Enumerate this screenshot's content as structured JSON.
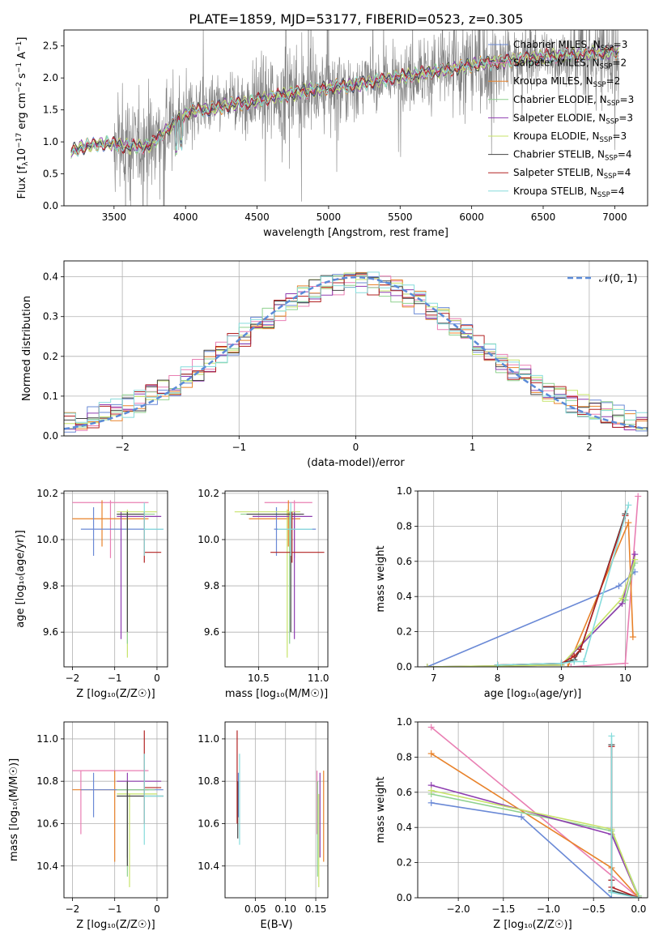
{
  "figure": {
    "title": "PLATE=1859, MJD=53177, FIBERID=0523, z=0.305",
    "colors": {
      "c_miles": "#6a89d6",
      "s_miles": "#e97fb3",
      "k_miles": "#e8822a",
      "c_elodie": "#8fd18f",
      "s_elodie": "#8e3db0",
      "k_elodie": "#c7e36a",
      "c_stelib": "#444444",
      "s_stelib": "#b22222",
      "k_stelib": "#86dcdc",
      "obs": "#808080",
      "normal": "#5b8bd8"
    }
  },
  "chart_data": [
    {
      "id": "spectrum",
      "type": "line",
      "title": "PLATE=1859, MJD=53177, FIBERID=0523, z=0.305",
      "xlabel": "wavelength [Angstrom, rest frame]",
      "ylabel_parts": [
        "Flux [f",
        "λ",
        "10",
        "−17",
        " erg cm",
        "−2",
        " s",
        "−1",
        " A",
        "−1",
        "]"
      ],
      "xlim": [
        3150,
        7230
      ],
      "ylim": [
        0,
        2.75
      ],
      "xticks": [
        3500,
        4000,
        4500,
        5000,
        5500,
        6000,
        6500,
        7000
      ],
      "yticks": [
        0.0,
        0.5,
        1.0,
        1.5,
        2.0,
        2.5
      ],
      "legend_position": "top-right",
      "legend": [
        {
          "label": "Chabrier MILES, N",
          "sub": "SSP",
          "suffix": "=3",
          "color_key": "c_miles"
        },
        {
          "label": "Salpeter MILES, N",
          "sub": "SSP",
          "suffix": "=2",
          "color_key": "s_miles"
        },
        {
          "label": "Kroupa MILES, N",
          "sub": "SSP",
          "suffix": "=2",
          "color_key": "k_miles"
        },
        {
          "label": "Chabrier ELODIE, N",
          "sub": "SSP",
          "suffix": "=3",
          "color_key": "c_elodie"
        },
        {
          "label": "Salpeter ELODIE, N",
          "sub": "SSP",
          "suffix": "=3",
          "color_key": "s_elodie"
        },
        {
          "label": "Kroupa ELODIE, N",
          "sub": "SSP",
          "suffix": "=3",
          "color_key": "k_elodie"
        },
        {
          "label": "Chabrier STELIB, N",
          "sub": "SSP",
          "suffix": "=4",
          "color_key": "c_stelib"
        },
        {
          "label": "Salpeter STELIB, N",
          "sub": "SSP",
          "suffix": "=4",
          "color_key": "s_stelib"
        },
        {
          "label": "Kroupa STELIB, N",
          "sub": "SSP",
          "suffix": "=4",
          "color_key": "k_stelib"
        }
      ],
      "continuum_model": {
        "x": [
          3200,
          3280,
          3350,
          3450,
          3550,
          3650,
          3750,
          3850,
          3950,
          4050,
          4150,
          4300,
          4450,
          4600,
          4800,
          5000,
          5200,
          5400,
          5600,
          5800,
          6000,
          6200,
          6400,
          6600,
          6800,
          7000
        ],
        "y": [
          0.85,
          0.92,
          0.95,
          0.98,
          0.95,
          0.92,
          0.95,
          1.15,
          1.35,
          1.5,
          1.5,
          1.58,
          1.62,
          1.7,
          1.78,
          1.85,
          1.9,
          1.98,
          2.05,
          2.12,
          2.2,
          2.26,
          2.31,
          2.35,
          2.38,
          2.4
        ]
      },
      "noise_start_x": 3500
    },
    {
      "id": "residuals",
      "type": "step",
      "xlabel": "(data-model)/error",
      "ylabel": "Normed distribution",
      "xlim": [
        -2.5,
        2.5
      ],
      "ylim": [
        0,
        0.44
      ],
      "xticks": [
        -2,
        -1,
        0,
        1,
        2
      ],
      "xtick_labels": [
        "−2",
        "−1",
        "0",
        "1",
        "2"
      ],
      "yticks": [
        0.0,
        0.1,
        0.2,
        0.3,
        0.4
      ],
      "legend_label": "𝒩(0, 1)",
      "legend_position": "top-right",
      "bin_width": 0.1
    },
    {
      "id": "age_vs_Z",
      "type": "errorbar",
      "xlabel": "Z [log₁₀(Z/Z☉)]",
      "ylabel": "age  [log₁₀(age/yr)]",
      "xlim": [
        -2.2,
        0.25
      ],
      "ylim": [
        9.45,
        10.21
      ],
      "xticks": [
        -2,
        -1,
        0
      ],
      "xtick_labels": [
        "−2",
        "−1",
        "0"
      ],
      "yticks": [
        9.6,
        9.8,
        10.0,
        10.2
      ],
      "points": [
        {
          "color_key": "s_miles",
          "x": -1.1,
          "xlo": -2.0,
          "xhi": -0.2,
          "y": 10.16,
          "ylo": 9.92,
          "yhi": 10.17
        },
        {
          "color_key": "k_miles",
          "x": -1.3,
          "xlo": -2.0,
          "xhi": -0.2,
          "y": 10.09,
          "ylo": 9.97,
          "yhi": 10.17
        },
        {
          "color_key": "c_miles",
          "x": -1.5,
          "xlo": -1.8,
          "xhi": 0.15,
          "y": 10.045,
          "ylo": 9.93,
          "yhi": 10.14
        },
        {
          "color_key": "k_elodie",
          "x": -0.7,
          "xlo": -0.95,
          "xhi": 0.0,
          "y": 10.12,
          "ylo": 9.49,
          "yhi": 10.13
        },
        {
          "color_key": "s_elodie",
          "x": -0.85,
          "xlo": -0.95,
          "xhi": 0.1,
          "y": 10.1,
          "ylo": 9.57,
          "yhi": 10.12
        },
        {
          "color_key": "c_elodie",
          "x": -0.7,
          "xlo": -0.95,
          "xhi": -0.05,
          "y": 10.11,
          "ylo": 9.55,
          "yhi": 10.12
        },
        {
          "color_key": "c_stelib",
          "x": -0.7,
          "xlo": -0.95,
          "xhi": -0.3,
          "y": 10.11,
          "ylo": 9.6,
          "yhi": 10.12
        },
        {
          "color_key": "s_stelib",
          "x": -0.3,
          "xlo": -0.3,
          "xhi": 0.1,
          "y": 9.945,
          "ylo": 9.9,
          "yhi": 10.12
        },
        {
          "color_key": "k_stelib",
          "x": -0.3,
          "xlo": -0.3,
          "xhi": 0.15,
          "y": 10.045,
          "ylo": 9.93,
          "yhi": 10.16
        }
      ]
    },
    {
      "id": "age_vs_mass",
      "type": "errorbar",
      "xlabel": "mass [log₁₀(M/M☉)]",
      "ylabel": "",
      "xlim": [
        10.22,
        11.08
      ],
      "ylim": [
        9.45,
        10.21
      ],
      "xticks": [
        10.5,
        11.0
      ],
      "xtick_labels": [
        "10.5",
        "11.0"
      ],
      "yticks": [
        9.6,
        9.8,
        10.0,
        10.2
      ],
      "points": [
        {
          "color_key": "s_miles",
          "x": 10.8,
          "xlo": 10.55,
          "xhi": 10.95,
          "y": 10.16,
          "ylo": 9.92,
          "yhi": 10.17
        },
        {
          "color_key": "k_miles",
          "x": 10.75,
          "xlo": 10.42,
          "xhi": 10.85,
          "y": 10.09,
          "ylo": 9.97,
          "yhi": 10.17
        },
        {
          "color_key": "c_miles",
          "x": 10.65,
          "xlo": 10.63,
          "xhi": 10.98,
          "y": 10.045,
          "ylo": 9.93,
          "yhi": 10.14
        },
        {
          "color_key": "k_elodie",
          "x": 10.74,
          "xlo": 10.3,
          "xhi": 10.85,
          "y": 10.12,
          "ylo": 9.49,
          "yhi": 10.13
        },
        {
          "color_key": "s_elodie",
          "x": 10.8,
          "xlo": 10.45,
          "xhi": 10.95,
          "y": 10.1,
          "ylo": 9.57,
          "yhi": 10.12
        },
        {
          "color_key": "c_elodie",
          "x": 10.76,
          "xlo": 10.35,
          "xhi": 10.85,
          "y": 10.11,
          "ylo": 9.55,
          "yhi": 10.12
        },
        {
          "color_key": "c_stelib",
          "x": 10.77,
          "xlo": 10.4,
          "xhi": 10.88,
          "y": 10.11,
          "ylo": 9.6,
          "yhi": 10.12
        },
        {
          "color_key": "s_stelib",
          "x": 10.78,
          "xlo": 10.6,
          "xhi": 11.05,
          "y": 9.945,
          "ylo": 9.9,
          "yhi": 10.12
        },
        {
          "color_key": "k_stelib",
          "x": 10.77,
          "xlo": 10.66,
          "xhi": 10.95,
          "y": 10.045,
          "ylo": 9.93,
          "yhi": 10.16
        }
      ]
    },
    {
      "id": "weight_vs_age",
      "type": "line",
      "xlabel": "age  [log₁₀(age/yr)]",
      "ylabel": "mass weight",
      "xlim": [
        6.75,
        10.35
      ],
      "ylim": [
        0,
        1.0
      ],
      "xticks": [
        7,
        8,
        9,
        10
      ],
      "xtick_labels": [
        "7",
        "8",
        "9",
        "10"
      ],
      "yticks": [
        0.0,
        0.2,
        0.4,
        0.6,
        0.8,
        1.0
      ],
      "series": [
        {
          "color_key": "c_miles",
          "x": [
            6.9,
            9.9,
            10.15
          ],
          "y": [
            0.0,
            0.46,
            0.54
          ]
        },
        {
          "color_key": "s_miles",
          "x": [
            9.15,
            10.0,
            10.2
          ],
          "y": [
            0.0,
            0.02,
            0.97
          ]
        },
        {
          "color_key": "k_miles",
          "x": [
            9.1,
            10.05,
            10.12
          ],
          "y": [
            0.0,
            0.82,
            0.17
          ]
        },
        {
          "color_key": "c_elodie",
          "x": [
            6.9,
            9.0,
            10.0,
            10.15
          ],
          "y": [
            0.0,
            0.01,
            0.38,
            0.59
          ]
        },
        {
          "color_key": "s_elodie",
          "x": [
            6.9,
            9.0,
            9.95,
            10.15
          ],
          "y": [
            0.0,
            0.01,
            0.36,
            0.64
          ]
        },
        {
          "color_key": "k_elodie",
          "x": [
            6.9,
            9.0,
            9.95,
            10.15
          ],
          "y": [
            0.0,
            0.01,
            0.39,
            0.61
          ]
        },
        {
          "color_key": "c_stelib",
          "x": [
            8.0,
            9.0,
            9.2,
            9.3,
            10.0
          ],
          "y": [
            0.01,
            0.02,
            0.04,
            0.1,
            0.87
          ]
        },
        {
          "color_key": "s_stelib",
          "x": [
            8.0,
            9.0,
            9.2,
            9.3,
            10.0
          ],
          "y": [
            0.01,
            0.02,
            0.06,
            0.1,
            0.86
          ]
        },
        {
          "color_key": "k_stelib",
          "x": [
            8.0,
            9.0,
            9.2,
            9.35,
            10.05
          ],
          "y": [
            0.01,
            0.02,
            0.03,
            0.03,
            0.92
          ]
        }
      ]
    },
    {
      "id": "mass_vs_Z",
      "type": "errorbar",
      "xlabel": "Z [log₁₀(Z/Z☉)]",
      "ylabel": "mass [log₁₀(M/M☉)]",
      "xlim": [
        -2.2,
        0.25
      ],
      "ylim": [
        10.25,
        11.08
      ],
      "xticks": [
        -2,
        -1,
        0
      ],
      "xtick_labels": [
        "−2",
        "−1",
        "0"
      ],
      "yticks": [
        10.4,
        10.6,
        10.8,
        11.0
      ],
      "points": [
        {
          "color_key": "s_miles",
          "x": -1.8,
          "xlo": -2.0,
          "xhi": -0.2,
          "y": 10.85,
          "ylo": 10.55,
          "yhi": 10.85
        },
        {
          "color_key": "k_miles",
          "x": -1.0,
          "xlo": -2.0,
          "xhi": -0.2,
          "y": 10.76,
          "ylo": 10.42,
          "yhi": 10.85
        },
        {
          "color_key": "c_miles",
          "x": -1.5,
          "xlo": -1.8,
          "xhi": 0.15,
          "y": 10.76,
          "ylo": 10.63,
          "yhi": 10.84
        },
        {
          "color_key": "k_elodie",
          "x": -0.65,
          "xlo": -0.95,
          "xhi": 0.0,
          "y": 10.74,
          "ylo": 10.3,
          "yhi": 10.74
        },
        {
          "color_key": "s_elodie",
          "x": -0.7,
          "xlo": -0.95,
          "xhi": 0.1,
          "y": 10.8,
          "ylo": 10.44,
          "yhi": 10.84
        },
        {
          "color_key": "c_elodie",
          "x": -0.7,
          "xlo": -0.95,
          "xhi": -0.05,
          "y": 10.76,
          "ylo": 10.35,
          "yhi": 10.8
        },
        {
          "color_key": "c_stelib",
          "x": -0.7,
          "xlo": -0.95,
          "xhi": 0.15,
          "y": 10.73,
          "ylo": 10.4,
          "yhi": 10.8
        },
        {
          "color_key": "s_stelib",
          "x": -0.3,
          "xlo": -0.3,
          "xhi": 0.1,
          "y": 10.77,
          "ylo": 10.6,
          "yhi": 11.04
        },
        {
          "color_key": "k_stelib",
          "x": -0.3,
          "xlo": -0.3,
          "xhi": 0.15,
          "y": 10.73,
          "ylo": 10.5,
          "yhi": 10.93
        }
      ]
    },
    {
      "id": "mass_vs_ebv",
      "type": "errorbar",
      "xlabel": "E(B-V)",
      "ylabel": "",
      "xlim": [
        0.0,
        0.17
      ],
      "ylim": [
        10.25,
        11.08
      ],
      "xticks": [
        0.05,
        0.1,
        0.15
      ],
      "xtick_labels": [
        "0.05",
        "0.10",
        "0.15"
      ],
      "yticks": [
        10.4,
        10.6,
        10.8,
        11.0
      ],
      "points": [
        {
          "color_key": "s_miles",
          "x": 0.152,
          "y": 10.7,
          "ylo": 10.55,
          "yhi": 10.85
        },
        {
          "color_key": "k_miles",
          "x": 0.163,
          "y": 10.6,
          "ylo": 10.42,
          "yhi": 10.85
        },
        {
          "color_key": "c_miles",
          "x": 0.022,
          "y": 10.75,
          "ylo": 10.63,
          "yhi": 10.84
        },
        {
          "color_key": "k_elodie",
          "x": 0.155,
          "y": 10.5,
          "ylo": 10.3,
          "yhi": 10.74
        },
        {
          "color_key": "s_elodie",
          "x": 0.157,
          "y": 10.75,
          "ylo": 10.44,
          "yhi": 10.84
        },
        {
          "color_key": "c_elodie",
          "x": 0.153,
          "y": 10.6,
          "ylo": 10.35,
          "yhi": 10.8
        },
        {
          "color_key": "c_stelib",
          "x": 0.021,
          "y": 10.62,
          "ylo": 10.53,
          "yhi": 10.8
        },
        {
          "color_key": "s_stelib",
          "x": 0.02,
          "y": 10.8,
          "ylo": 10.6,
          "yhi": 11.04
        },
        {
          "color_key": "k_stelib",
          "x": 0.024,
          "y": 10.7,
          "ylo": 10.5,
          "yhi": 10.93
        }
      ]
    },
    {
      "id": "weight_vs_Z",
      "type": "line",
      "xlabel": "Z [log₁₀(Z/Z☉)]",
      "ylabel": "mass weight",
      "xlim": [
        -2.45,
        0.1
      ],
      "ylim": [
        0,
        1.0
      ],
      "xticks": [
        -2.0,
        -1.5,
        -1.0,
        -0.5,
        0.0
      ],
      "xtick_labels": [
        "−2.0",
        "−1.5",
        "−1.0",
        "−0.5",
        "0.0"
      ],
      "yticks": [
        0.0,
        0.2,
        0.4,
        0.6,
        0.8,
        1.0
      ],
      "series": [
        {
          "color_key": "c_miles",
          "x": [
            -2.3,
            -1.3,
            -0.3,
            0.0
          ],
          "y": [
            0.54,
            0.46,
            0.0,
            0.0
          ]
        },
        {
          "color_key": "s_miles",
          "x": [
            -2.3,
            0.0
          ],
          "y": [
            0.97,
            0.0
          ]
        },
        {
          "color_key": "k_miles",
          "x": [
            -2.3,
            -0.3,
            0.0
          ],
          "y": [
            0.82,
            0.17,
            0.0
          ]
        },
        {
          "color_key": "c_elodie",
          "x": [
            -2.3,
            -0.3,
            0.0
          ],
          "y": [
            0.59,
            0.38,
            0.01
          ]
        },
        {
          "color_key": "s_elodie",
          "x": [
            -2.3,
            -0.3,
            0.0
          ],
          "y": [
            0.64,
            0.36,
            0.0
          ]
        },
        {
          "color_key": "k_elodie",
          "x": [
            -2.3,
            -0.3,
            0.0
          ],
          "y": [
            0.61,
            0.39,
            0.0
          ]
        },
        {
          "color_key": "c_stelib",
          "x": [
            -0.3,
            -0.3,
            -0.3,
            0.0
          ],
          "y": [
            0.87,
            0.1,
            0.04,
            0.0
          ]
        },
        {
          "color_key": "s_stelib",
          "x": [
            -0.3,
            -0.3,
            -0.3,
            0.0
          ],
          "y": [
            0.86,
            0.1,
            0.06,
            0.0
          ]
        },
        {
          "color_key": "k_stelib",
          "x": [
            -0.3,
            -0.3,
            -0.3,
            0.0
          ],
          "y": [
            0.92,
            0.03,
            0.03,
            0.0
          ]
        }
      ]
    }
  ]
}
